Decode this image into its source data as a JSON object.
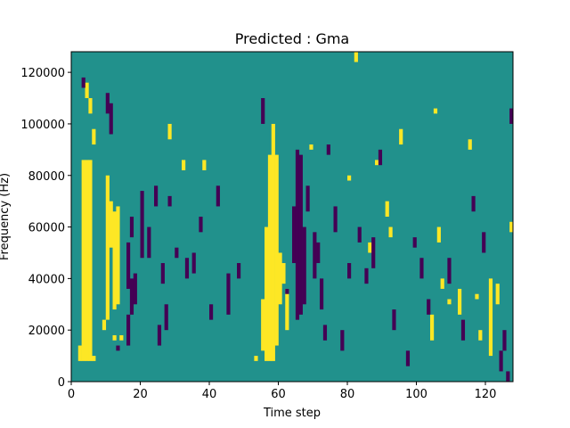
{
  "chart_data": {
    "type": "heatmap",
    "title": "Predicted : Gma",
    "xlabel": "Time step",
    "ylabel": "Frequency (Hz)",
    "xlim": [
      0,
      128
    ],
    "ylim": [
      0,
      128000
    ],
    "xticks": [
      0,
      20,
      40,
      60,
      80,
      100,
      120
    ],
    "yticks": [
      0,
      20000,
      40000,
      60000,
      80000,
      100000,
      120000
    ],
    "colorscale": {
      "low": "#440154",
      "mid": "#21918c",
      "high": "#fde725"
    },
    "background_value": "mid",
    "n_time_steps": 128,
    "n_freq_bins": 64,
    "cells": {
      "high": [
        [
          2,
          8000,
          14000
        ],
        [
          3,
          8000,
          86000
        ],
        [
          4,
          8000,
          86000
        ],
        [
          5,
          8000,
          86000
        ],
        [
          6,
          8000,
          10000
        ],
        [
          5,
          104000,
          110000
        ],
        [
          4,
          110000,
          116000
        ],
        [
          6,
          92000,
          98000
        ],
        [
          9,
          20000,
          24000
        ],
        [
          10,
          24000,
          80000
        ],
        [
          11,
          52000,
          70000
        ],
        [
          12,
          28000,
          66000
        ],
        [
          13,
          30000,
          68000
        ],
        [
          12,
          16000,
          18000
        ],
        [
          14,
          16000,
          18000
        ],
        [
          28,
          94000,
          100000
        ],
        [
          32,
          82000,
          86000
        ],
        [
          38,
          82000,
          86000
        ],
        [
          53,
          8000,
          10000
        ],
        [
          55,
          12000,
          32000
        ],
        [
          56,
          8000,
          60000
        ],
        [
          57,
          8000,
          88000
        ],
        [
          58,
          8000,
          100000
        ],
        [
          59,
          14000,
          88000
        ],
        [
          60,
          30000,
          50000
        ],
        [
          61,
          38000,
          46000
        ],
        [
          62,
          20000,
          36000
        ],
        [
          69,
          90000,
          92000
        ],
        [
          80,
          78000,
          80000
        ],
        [
          82,
          124000,
          128000
        ],
        [
          86,
          50000,
          54000
        ],
        [
          88,
          84000,
          86000
        ],
        [
          91,
          64000,
          70000
        ],
        [
          92,
          56000,
          60000
        ],
        [
          95,
          92000,
          98000
        ],
        [
          104,
          16000,
          26000
        ],
        [
          105,
          104000,
          106000
        ],
        [
          106,
          54000,
          60000
        ],
        [
          107,
          36000,
          40000
        ],
        [
          109,
          30000,
          32000
        ],
        [
          112,
          26000,
          36000
        ],
        [
          115,
          90000,
          94000
        ],
        [
          118,
          16000,
          20000
        ],
        [
          117,
          32000,
          34000
        ],
        [
          121,
          10000,
          40000
        ],
        [
          123,
          30000,
          38000
        ],
        [
          127,
          58000,
          62000
        ]
      ],
      "low": [
        [
          3,
          114000,
          118000
        ],
        [
          10,
          104000,
          112000
        ],
        [
          11,
          96000,
          108000
        ],
        [
          13,
          12000,
          14000
        ],
        [
          16,
          14000,
          26000
        ],
        [
          16,
          36000,
          54000
        ],
        [
          17,
          26000,
          40000
        ],
        [
          17,
          56000,
          64000
        ],
        [
          18,
          30000,
          42000
        ],
        [
          20,
          48000,
          74000
        ],
        [
          22,
          48000,
          60000
        ],
        [
          24,
          68000,
          76000
        ],
        [
          25,
          14000,
          22000
        ],
        [
          26,
          38000,
          46000
        ],
        [
          27,
          20000,
          30000
        ],
        [
          28,
          68000,
          72000
        ],
        [
          30,
          48000,
          52000
        ],
        [
          33,
          40000,
          48000
        ],
        [
          35,
          42000,
          50000
        ],
        [
          37,
          58000,
          64000
        ],
        [
          40,
          24000,
          30000
        ],
        [
          42,
          68000,
          76000
        ],
        [
          45,
          26000,
          42000
        ],
        [
          48,
          40000,
          46000
        ],
        [
          55,
          100000,
          110000
        ],
        [
          62,
          34000,
          36000
        ],
        [
          64,
          46000,
          68000
        ],
        [
          65,
          24000,
          90000
        ],
        [
          66,
          26000,
          88000
        ],
        [
          67,
          30000,
          60000
        ],
        [
          68,
          66000,
          76000
        ],
        [
          70,
          40000,
          58000
        ],
        [
          71,
          46000,
          54000
        ],
        [
          72,
          28000,
          40000
        ],
        [
          73,
          16000,
          22000
        ],
        [
          74,
          88000,
          92000
        ],
        [
          76,
          58000,
          68000
        ],
        [
          78,
          12000,
          20000
        ],
        [
          80,
          40000,
          46000
        ],
        [
          83,
          54000,
          60000
        ],
        [
          85,
          38000,
          44000
        ],
        [
          87,
          44000,
          56000
        ],
        [
          89,
          84000,
          90000
        ],
        [
          93,
          20000,
          28000
        ],
        [
          97,
          6000,
          12000
        ],
        [
          99,
          52000,
          56000
        ],
        [
          101,
          40000,
          48000
        ],
        [
          103,
          26000,
          32000
        ],
        [
          109,
          38000,
          48000
        ],
        [
          113,
          16000,
          24000
        ],
        [
          116,
          66000,
          72000
        ],
        [
          119,
          50000,
          58000
        ],
        [
          124,
          4000,
          12000
        ],
        [
          125,
          12000,
          20000
        ],
        [
          126,
          0,
          4000
        ],
        [
          127,
          100000,
          106000
        ]
      ]
    }
  }
}
